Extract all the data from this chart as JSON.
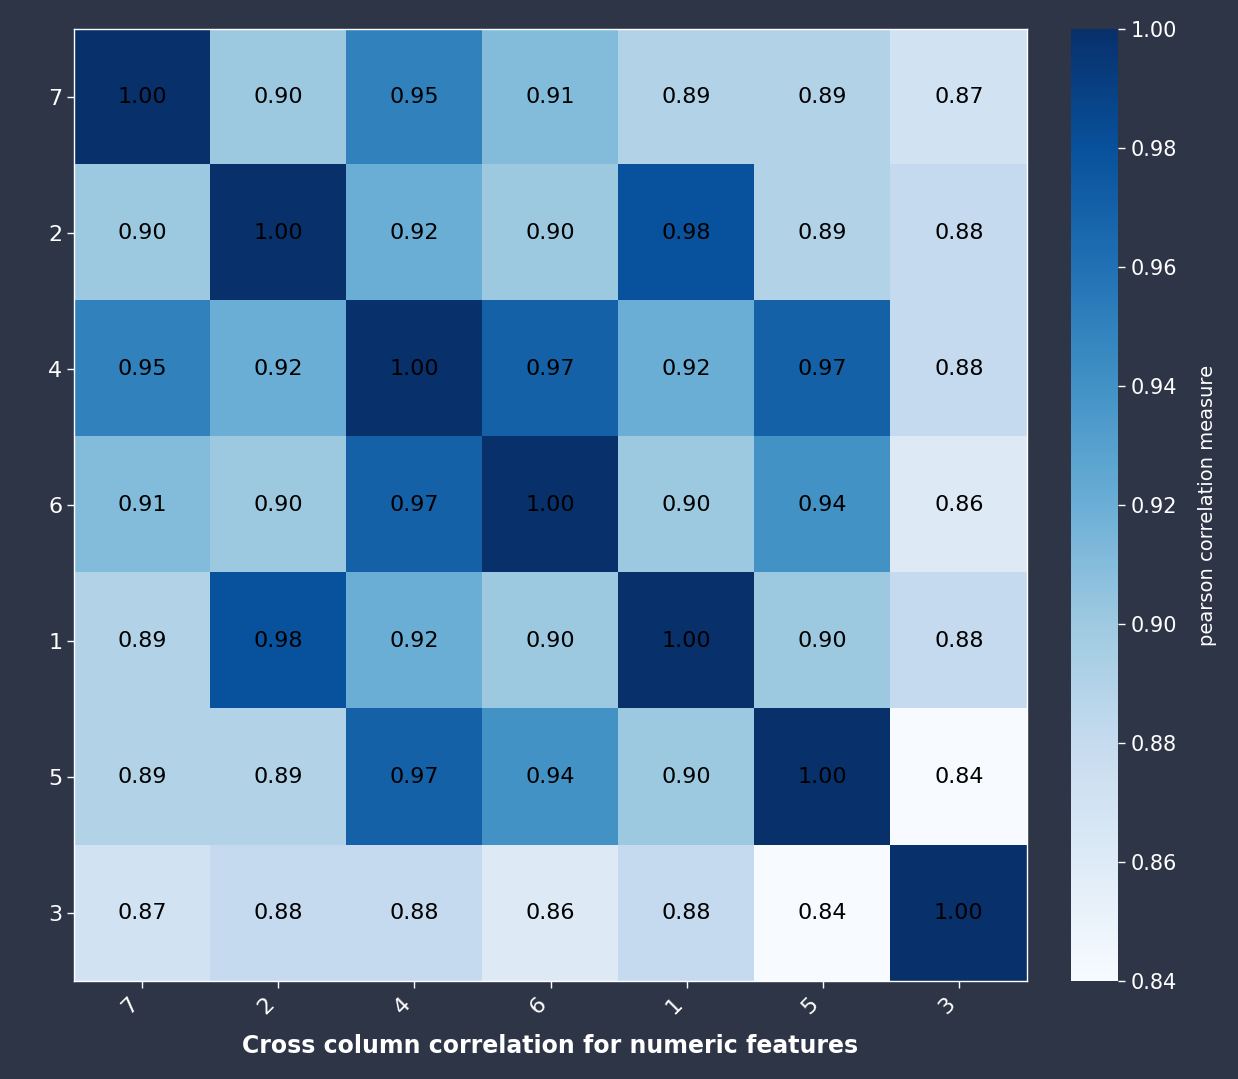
{
  "labels": [
    "7",
    "2",
    "4",
    "6",
    "1",
    "5",
    "3"
  ],
  "matrix": [
    [
      1.0,
      0.9,
      0.95,
      0.91,
      0.89,
      0.89,
      0.87
    ],
    [
      0.9,
      1.0,
      0.92,
      0.9,
      0.98,
      0.89,
      0.88
    ],
    [
      0.95,
      0.92,
      1.0,
      0.97,
      0.92,
      0.97,
      0.88
    ],
    [
      0.91,
      0.9,
      0.97,
      1.0,
      0.9,
      0.94,
      0.86
    ],
    [
      0.89,
      0.98,
      0.92,
      0.9,
      1.0,
      0.9,
      0.88
    ],
    [
      0.89,
      0.89,
      0.97,
      0.94,
      0.9,
      1.0,
      0.84
    ],
    [
      0.87,
      0.88,
      0.88,
      0.86,
      0.88,
      0.84,
      1.0
    ]
  ],
  "xlabel": "Cross column correlation for numeric features",
  "colorbar_label": "pearson correlation measure",
  "vmin": 0.84,
  "vmax": 1.0,
  "background_color": "#2e3547",
  "text_color": "white",
  "cell_text_color": "black",
  "cmap": "Blues",
  "title_fontsize": 16,
  "tick_fontsize": 16,
  "annotation_fontsize": 16,
  "colorbar_tick_fontsize": 15,
  "colorbar_label_fontsize": 14,
  "xlabel_fontsize": 17,
  "xtick_rotation": 45,
  "cbar_ticks": [
    0.84,
    0.86,
    0.88,
    0.9,
    0.92,
    0.94,
    0.96,
    0.98,
    1.0
  ]
}
